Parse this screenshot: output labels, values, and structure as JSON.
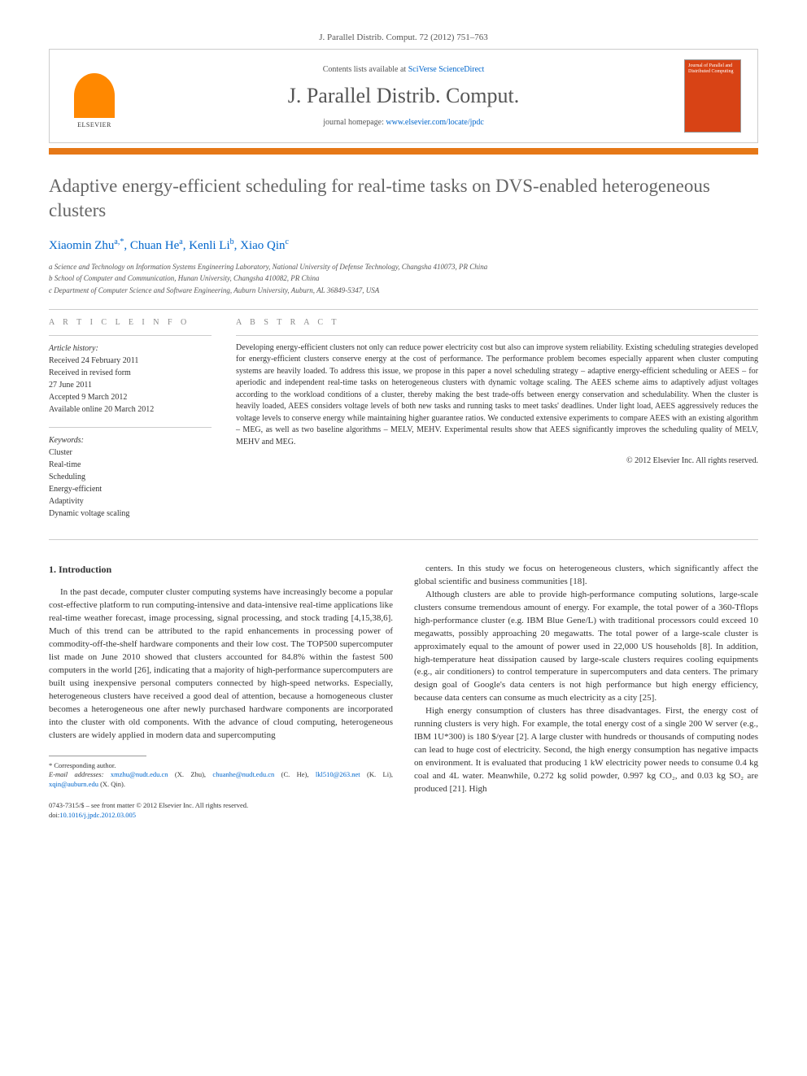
{
  "citation": "J. Parallel Distrib. Comput. 72 (2012) 751–763",
  "header": {
    "contents_prefix": "Contents lists available at ",
    "contents_link": "SciVerse ScienceDirect",
    "journal_title": "J. Parallel Distrib. Comput.",
    "homepage_prefix": "journal homepage: ",
    "homepage_link": "www.elsevier.com/locate/jpdc",
    "elsevier_label": "ELSEVIER",
    "cover_text": "Journal of Parallel and Distributed Computing"
  },
  "title": "Adaptive energy-efficient scheduling for real-time tasks on DVS-enabled heterogeneous clusters",
  "authors_html": "Xiaomin Zhu",
  "authors": [
    {
      "name": "Xiaomin Zhu",
      "sup": "a,*"
    },
    {
      "name": "Chuan He",
      "sup": "a"
    },
    {
      "name": "Kenli Li",
      "sup": "b"
    },
    {
      "name": "Xiao Qin",
      "sup": "c"
    }
  ],
  "affiliations": [
    "a Science and Technology on Information Systems Engineering Laboratory, National University of Defense Technology, Changsha 410073, PR China",
    "b School of Computer and Communication, Hunan University, Changsha 410082, PR China",
    "c Department of Computer Science and Software Engineering, Auburn University, Auburn, AL 36849-5347, USA"
  ],
  "article_info": {
    "heading": "A R T I C L E   I N F O",
    "history_label": "Article history:",
    "history": [
      "Received 24 February 2011",
      "Received in revised form",
      "27 June 2011",
      "Accepted 9 March 2012",
      "Available online 20 March 2012"
    ],
    "keywords_label": "Keywords:",
    "keywords": [
      "Cluster",
      "Real-time",
      "Scheduling",
      "Energy-efficient",
      "Adaptivity",
      "Dynamic voltage scaling"
    ]
  },
  "abstract": {
    "heading": "A B S T R A C T",
    "text": "Developing energy-efficient clusters not only can reduce power electricity cost but also can improve system reliability. Existing scheduling strategies developed for energy-efficient clusters conserve energy at the cost of performance. The performance problem becomes especially apparent when cluster computing systems are heavily loaded. To address this issue, we propose in this paper a novel scheduling strategy – adaptive energy-efficient scheduling or AEES – for aperiodic and independent real-time tasks on heterogeneous clusters with dynamic voltage scaling. The AEES scheme aims to adaptively adjust voltages according to the workload conditions of a cluster, thereby making the best trade-offs between energy conservation and schedulability. When the cluster is heavily loaded, AEES considers voltage levels of both new tasks and running tasks to meet tasks' deadlines. Under light load, AEES aggressively reduces the voltage levels to conserve energy while maintaining higher guarantee ratios. We conducted extensive experiments to compare AEES with an existing algorithm – MEG, as well as two baseline algorithms – MELV, MEHV. Experimental results show that AEES significantly improves the scheduling quality of MELV, MEHV and MEG.",
    "copyright": "© 2012 Elsevier Inc. All rights reserved."
  },
  "section1_heading": "1. Introduction",
  "body_left": "In the past decade, computer cluster computing systems have increasingly become a popular cost-effective platform to run computing-intensive and data-intensive real-time applications like real-time weather forecast, image processing, signal processing, and stock trading [4,15,38,6]. Much of this trend can be attributed to the rapid enhancements in processing power of commodity-off-the-shelf hardware components and their low cost. The TOP500 supercomputer list made on June 2010 showed that clusters accounted for 84.8% within the fastest 500 computers in the world [26], indicating that a majority of high-performance supercomputers are built using inexpensive personal computers connected by high-speed networks. Especially, heterogeneous clusters have received a good deal of attention, because a homogeneous cluster becomes a heterogeneous one after newly purchased hardware components are incorporated into the cluster with old components. With the advance of cloud computing, heterogeneous clusters are widely applied in modern data and supercomputing",
  "body_right_p1": "centers. In this study we focus on heterogeneous clusters, which significantly affect the global scientific and business communities [18].",
  "body_right_p2": "Although clusters are able to provide high-performance computing solutions, large-scale clusters consume tremendous amount of energy. For example, the total power of a 360-Tflops high-performance cluster (e.g. IBM Blue Gene/L) with traditional processors could exceed 10 megawatts, possibly approaching 20 megawatts. The total power of a large-scale cluster is approximately equal to the amount of power used in 22,000 US households [8]. In addition, high-temperature heat dissipation caused by large-scale clusters requires cooling equipments (e.g., air conditioners) to control temperature in supercomputers and data centers. The primary design goal of Google's data centers is not high performance but high energy efficiency, because data centers can consume as much electricity as a city [25].",
  "body_right_p3": "High energy consumption of clusters has three disadvantages. First, the energy cost of running clusters is very high. For example, the total energy cost of a single 200 W server (e.g., IBM 1U*300) is 180 $/year [2]. A large cluster with hundreds or thousands of computing nodes can lead to huge cost of electricity. Second, the high energy consumption has negative impacts on environment. It is evaluated that producing 1 kW electricity power needs to consume 0.4 kg coal and 4L water. Meanwhile, 0.272 kg solid powder, 0.997 kg CO₂, and 0.03 kg SO₂ are produced [21]. High",
  "footnotes": {
    "corr": "* Corresponding author.",
    "email_label": "E-mail addresses:",
    "emails": [
      {
        "addr": "xmzhu@nudt.edu.cn",
        "who": "(X. Zhu)"
      },
      {
        "addr": "chuanhe@nudt.edu.cn",
        "who": "(C. He)"
      },
      {
        "addr": "lkl510@263.net",
        "who": "(K. Li)"
      },
      {
        "addr": "xqin@auburn.edu",
        "who": "(X. Qin)"
      }
    ]
  },
  "doi": {
    "line1": "0743-7315/$ – see front matter © 2012 Elsevier Inc. All rights reserved.",
    "line2_prefix": "doi:",
    "line2_link": "10.1016/j.jpdc.2012.03.005"
  },
  "colors": {
    "orange_bar": "#e67817",
    "link": "#0066cc",
    "title_gray": "#666666",
    "cover_bg": "#d84315"
  }
}
